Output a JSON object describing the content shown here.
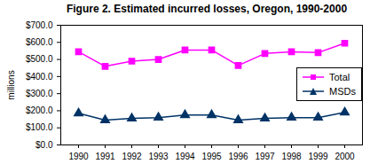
{
  "chart_data": {
    "type": "line",
    "title": "Figure 2. Estimated incurred losses, Oregon, 1990-2000",
    "y_label": "millions",
    "categories": [
      "1990",
      "1991",
      "1992",
      "1993",
      "1994",
      "1995",
      "1996",
      "1997",
      "1998",
      "1999",
      "2000"
    ],
    "series": [
      {
        "name": "Total",
        "color": "#ff00ff",
        "marker": "square",
        "values": [
          545,
          460,
          490,
          500,
          555,
          555,
          465,
          535,
          545,
          540,
          595
        ]
      },
      {
        "name": "MSDs",
        "color": "#003366",
        "marker": "triangle",
        "values": [
          185,
          145,
          155,
          160,
          175,
          175,
          145,
          155,
          160,
          160,
          190
        ]
      }
    ],
    "ylim": [
      0,
      700
    ],
    "yticks": [
      {
        "value": 0,
        "label": "$0.0"
      },
      {
        "value": 100,
        "label": "$100.0"
      },
      {
        "value": 200,
        "label": "$200.0"
      },
      {
        "value": 300,
        "label": "$300.0"
      },
      {
        "value": 400,
        "label": "$400.0"
      },
      {
        "value": 500,
        "label": "$500.0"
      },
      {
        "value": 600,
        "label": "$600.0"
      },
      {
        "value": 700,
        "label": "$700.0"
      }
    ],
    "grid": false,
    "legend": "right"
  }
}
